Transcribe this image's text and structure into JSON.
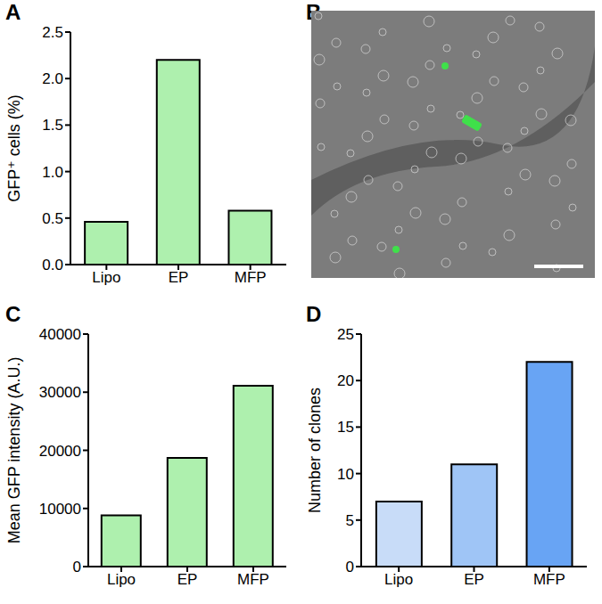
{
  "chart_data": [
    {
      "panel": "A",
      "type": "bar",
      "categories": [
        "Lipo",
        "EP",
        "MFP"
      ],
      "values": [
        0.46,
        2.2,
        0.58
      ],
      "color": "#aef0ae",
      "y_label": "GFP⁺ cells (%)",
      "ylim": [
        0,
        2.5
      ],
      "yticks": [
        {
          "value": 0,
          "label": "0.0"
        },
        0.5,
        {
          "value": 1,
          "label": "1.0"
        },
        1.5,
        {
          "value": 2,
          "label": "2.0"
        },
        2.5
      ],
      "grid": false
    },
    {
      "panel": "B",
      "type": "image"
    },
    {
      "panel": "C",
      "type": "bar",
      "categories": [
        "Lipo",
        "EP",
        "MFP"
      ],
      "values": [
        8800,
        18700,
        31100
      ],
      "color": "#aef0ae",
      "y_label": "Mean GFP intensity (A.U.)",
      "ylim": [
        0,
        40000
      ],
      "yticks": [
        0,
        10000,
        20000,
        30000,
        40000
      ],
      "grid": false
    },
    {
      "panel": "D",
      "type": "bar",
      "categories": [
        "Lipo",
        "EP",
        "MFP"
      ],
      "values": [
        7,
        11,
        22
      ],
      "colors": [
        "#c8dcf8",
        "#9fc5f6",
        "#68a4f4"
      ],
      "y_label": "Number of clones",
      "ylim": [
        0,
        25
      ],
      "yticks": [
        0,
        5,
        10,
        15,
        20,
        25
      ],
      "grid": false
    }
  ]
}
